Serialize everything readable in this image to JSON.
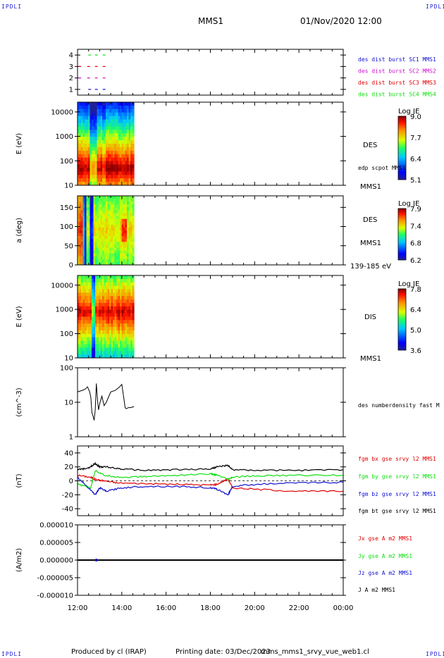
{
  "corners": {
    "tl": "IPDLI",
    "tr": "IPDLI",
    "bl": "IPDLI",
    "br": "IPDLI"
  },
  "header": {
    "spacecraft": "MMS1",
    "datetime": "01/Nov/2020 12:00"
  },
  "footer": {
    "producer": "Produced by cl (IRAP)",
    "print_date": "Printing date: 03/Dec/2023",
    "file": "mms_mms1_srvy_vue_web1.cl"
  },
  "colors": {
    "blue": "#1010d0",
    "magenta": "#d010d0",
    "red": "#e00000",
    "green": "#10e010",
    "black": "#000000"
  },
  "x_axis": {
    "ticks": [
      "12:00",
      "14:00",
      "16:00",
      "18:00",
      "20:00",
      "22:00",
      "00:00"
    ],
    "range_hours": [
      0,
      12
    ]
  },
  "chart_data": [
    {
      "type": "scatter",
      "ylim": [
        0.5,
        4.5
      ],
      "yticks": [
        "1",
        "2",
        "3",
        "4"
      ],
      "legend": [
        {
          "label": "des dist burst SC1 MMS1",
          "color": "#1010d0"
        },
        {
          "label": "des dist burst SC2 MMS2",
          "color": "#d010d0"
        },
        {
          "label": "des dist burst SC3 MMS3",
          "color": "#e00000"
        },
        {
          "label": "des dist burst SC4 MMS4",
          "color": "#10e010"
        }
      ],
      "series": [
        {
          "y": 1,
          "color": "#1010d0",
          "x": [
            0.55,
            0.85,
            1.2
          ]
        },
        {
          "y": 2,
          "color": "#d010d0",
          "x": [
            0.1,
            0.5,
            0.85,
            1.2
          ]
        },
        {
          "y": 3,
          "color": "#e00000",
          "x": [
            0.1,
            0.5,
            0.85,
            1.2
          ]
        },
        {
          "y": 4,
          "color": "#10e010",
          "x": [
            0.55,
            0.85,
            1.2
          ]
        }
      ]
    },
    {
      "type": "heatmap",
      "ylabel": "E (eV)",
      "yticks": [
        "10",
        "100",
        "1000",
        "10000"
      ],
      "ylim_log10": [
        1,
        4.4
      ],
      "x_range_hours": [
        0,
        2.55
      ],
      "right_labels": [
        "DES",
        "edp scpot MMS1",
        "MMS1"
      ],
      "colorbar": {
        "title": "Log JE",
        "ticks": [
          "9.0",
          "7.7",
          "6.4",
          "5.1"
        ]
      },
      "coloring": "log JE, red peak near 30-200 eV"
    },
    {
      "type": "heatmap",
      "ylabel": "a (deg)",
      "yticks": [
        "0",
        "50",
        "100",
        "150"
      ],
      "ylim": [
        0,
        180
      ],
      "x_range_hours": [
        0,
        2.55
      ],
      "right_labels": [
        "DES",
        "MMS1",
        "139-185 eV"
      ],
      "colorbar": {
        "title": "Log JE",
        "ticks": [
          "7.9",
          "7.4",
          "6.8",
          "6.2"
        ]
      }
    },
    {
      "type": "heatmap",
      "ylabel": "E (eV)",
      "yticks": [
        "10",
        "100",
        "1000",
        "10000"
      ],
      "ylim_log10": [
        1,
        4.4
      ],
      "x_range_hours": [
        0,
        2.55
      ],
      "right_labels": [
        "DIS",
        "MMS1"
      ],
      "colorbar": {
        "title": "Log JE",
        "ticks": [
          "7.8",
          "6.4",
          "5.0",
          "3.6"
        ]
      }
    },
    {
      "type": "line",
      "ylabel": "(cm^-3)",
      "ylim_log10": [
        0,
        2
      ],
      "yticks": [
        "1",
        "10",
        "100"
      ],
      "legend": [
        {
          "label": "des numberdensity fast M",
          "color": "#000000"
        }
      ],
      "series": [
        {
          "name": "des numberdensity fast M",
          "color": "#000000",
          "x": [
            0,
            0.2,
            0.35,
            0.45,
            0.55,
            0.6,
            0.65,
            0.7,
            0.75,
            0.8,
            0.85,
            0.9,
            0.95,
            1.0,
            1.1,
            1.2,
            1.3,
            1.5,
            1.7,
            1.9,
            2.0,
            2.1,
            2.15,
            2.2,
            2.3,
            2.4,
            2.55
          ],
          "y": [
            20,
            22,
            24,
            28,
            20,
            14,
            5,
            4,
            3,
            6,
            35,
            12,
            6,
            9,
            15,
            8,
            10,
            20,
            22,
            28,
            33,
            12,
            7,
            6.5,
            7,
            7,
            7.5
          ]
        }
      ]
    },
    {
      "type": "line",
      "ylabel": "(nT)",
      "ylim": [
        -50,
        50
      ],
      "yticks": [
        "40",
        "20",
        "0",
        "-20",
        "-40"
      ],
      "legend": [
        {
          "label": "fgm bx gse srvy l2 MMS1",
          "color": "#e00000"
        },
        {
          "label": "fgm by gse srvy l2 MMS1",
          "color": "#10e010"
        },
        {
          "label": "fgm bz gse srvy l2 MMS1",
          "color": "#1010d0"
        },
        {
          "label": "fgm bt gse srvy l2 MMS1",
          "color": "#000000"
        }
      ],
      "series": [
        {
          "name": "fgm bx gse srvy l2 MMS1",
          "color": "#e00000",
          "x": [
            0,
            0.6,
            0.8,
            1.2,
            1.8,
            3,
            4.5,
            6,
            6.3,
            6.8,
            7,
            8,
            10,
            12
          ],
          "y": [
            8,
            5,
            2,
            0,
            -3,
            -4,
            -5,
            -6,
            -5,
            3,
            -10,
            -12,
            -15,
            -15
          ]
        },
        {
          "name": "fgm by gse srvy l2 MMS1",
          "color": "#10e010",
          "x": [
            0,
            0.6,
            0.8,
            1.2,
            2,
            3,
            4.5,
            6,
            6.3,
            6.8,
            7,
            8,
            10,
            12
          ],
          "y": [
            -5,
            -10,
            15,
            8,
            5,
            6,
            8,
            10,
            8,
            2,
            5,
            7,
            8,
            8
          ]
        },
        {
          "name": "fgm bz gse srvy l2 MMS1",
          "color": "#1010d0",
          "x": [
            0,
            0.5,
            0.8,
            1.0,
            1.3,
            2,
            3,
            4.5,
            6,
            6.3,
            6.8,
            7,
            8,
            10,
            12
          ],
          "y": [
            5,
            -10,
            -20,
            -10,
            -15,
            -10,
            -8,
            -8,
            -10,
            -12,
            -20,
            -8,
            -5,
            -3,
            -2
          ]
        },
        {
          "name": "fgm bt gse srvy l2 MMS1",
          "color": "#000000",
          "x": [
            0,
            0.5,
            0.8,
            1.0,
            1.3,
            2,
            3,
            4.5,
            6,
            6.3,
            6.8,
            7,
            8,
            10,
            12
          ],
          "y": [
            16,
            18,
            25,
            20,
            20,
            17,
            15,
            16,
            17,
            20,
            22,
            16,
            15,
            15,
            16
          ]
        }
      ]
    },
    {
      "type": "line",
      "ylabel": "(A/m2)",
      "ylim": [
        -1e-05,
        1e-05
      ],
      "yticks": [
        "0.000010",
        "0.000005",
        "0.000000",
        "-0.000005",
        "-0.000010"
      ],
      "legend": [
        {
          "label": "Jx gse A m2 MMS1",
          "color": "#e00000"
        },
        {
          "label": "Jy gse A m2 MMS1",
          "color": "#10e010"
        },
        {
          "label": "Jz gse A m2 MMS1",
          "color": "#1010d0"
        },
        {
          "label": "J A m2 MMS1",
          "color": "#000000"
        }
      ],
      "series": [
        {
          "name": "J A m2 MMS1",
          "color": "#000000",
          "x": [
            0,
            12
          ],
          "y": [
            0,
            0
          ]
        }
      ]
    }
  ]
}
